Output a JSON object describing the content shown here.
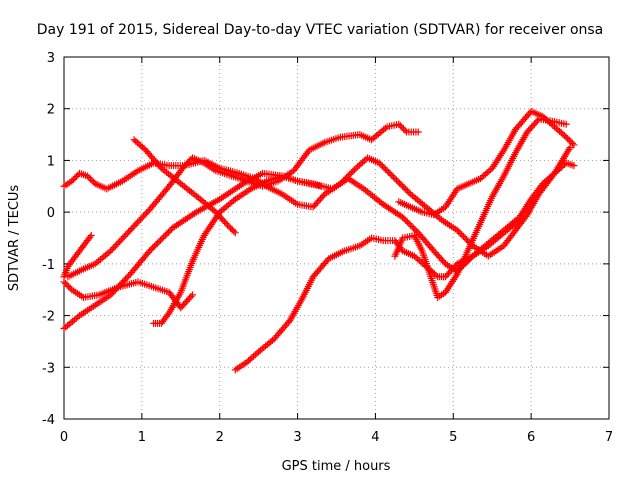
{
  "chart_data": {
    "type": "scatter",
    "title": "Day 191 of 2015, Sidereal Day-to-day VTEC variation (SDTVAR) for receiver onsa",
    "xlabel": "GPS time / hours",
    "ylabel": "SDTVAR / TECUs",
    "xlim": [
      0,
      7
    ],
    "ylim": [
      -4,
      3
    ],
    "x_ticks": [
      "0",
      "1",
      "2",
      "3",
      "4",
      "5",
      "6",
      "7"
    ],
    "y_ticks": [
      "-4",
      "-3",
      "-2",
      "-1",
      "0",
      "1",
      "2",
      "3"
    ],
    "grid": true,
    "marker": "+",
    "color": "#ff0000",
    "series": [
      {
        "points": [
          [
            0.0,
            -2.25
          ],
          [
            0.2,
            -2.0
          ],
          [
            0.4,
            -1.8
          ],
          [
            0.6,
            -1.6
          ],
          [
            0.85,
            -1.2
          ],
          [
            1.1,
            -0.75
          ],
          [
            1.4,
            -0.3
          ],
          [
            1.7,
            0.0
          ],
          [
            2.0,
            0.25
          ],
          [
            2.3,
            0.55
          ],
          [
            2.55,
            0.75
          ],
          [
            2.8,
            0.7
          ],
          [
            3.0,
            0.6
          ],
          [
            3.2,
            0.55
          ],
          [
            3.45,
            0.45
          ],
          [
            3.65,
            0.65
          ],
          [
            3.85,
            0.45
          ],
          [
            4.1,
            0.15
          ],
          [
            4.35,
            -0.1
          ],
          [
            4.55,
            -0.4
          ],
          [
            4.75,
            -0.75
          ],
          [
            4.9,
            -1.0
          ],
          [
            5.05,
            -1.15
          ],
          [
            5.25,
            -0.85
          ],
          [
            5.45,
            -0.65
          ],
          [
            5.65,
            -0.4
          ],
          [
            5.85,
            -0.15
          ]
        ]
      },
      {
        "points": [
          [
            0.0,
            -1.35
          ],
          [
            0.1,
            -1.5
          ],
          [
            0.25,
            -1.65
          ],
          [
            0.45,
            -1.6
          ],
          [
            0.7,
            -1.45
          ],
          [
            0.95,
            -1.35
          ],
          [
            1.15,
            -1.45
          ],
          [
            1.35,
            -1.55
          ],
          [
            1.5,
            -1.85
          ],
          [
            1.65,
            -1.6
          ]
        ]
      },
      {
        "points": [
          [
            0.05,
            -1.25
          ],
          [
            0.25,
            -1.1
          ],
          [
            0.4,
            -1.0
          ],
          [
            0.6,
            -0.75
          ],
          [
            0.85,
            -0.35
          ],
          [
            1.1,
            0.05
          ],
          [
            1.35,
            0.5
          ],
          [
            1.55,
            0.9
          ],
          [
            1.65,
            1.05
          ],
          [
            1.8,
            0.95
          ],
          [
            1.95,
            0.8
          ],
          [
            2.15,
            0.7
          ],
          [
            2.35,
            0.6
          ],
          [
            2.55,
            0.5
          ],
          [
            2.75,
            0.6
          ],
          [
            2.95,
            0.8
          ],
          [
            3.15,
            1.2
          ],
          [
            3.35,
            1.35
          ],
          [
            3.55,
            1.45
          ],
          [
            3.8,
            1.5
          ],
          [
            3.95,
            1.4
          ],
          [
            4.15,
            1.65
          ],
          [
            4.3,
            1.7
          ],
          [
            4.4,
            1.55
          ],
          [
            4.55,
            1.55
          ]
        ]
      },
      {
        "points": [
          [
            0.0,
            0.5
          ],
          [
            0.1,
            0.6
          ],
          [
            0.2,
            0.75
          ],
          [
            0.3,
            0.7
          ],
          [
            0.4,
            0.55
          ],
          [
            0.55,
            0.45
          ],
          [
            0.75,
            0.6
          ],
          [
            0.95,
            0.8
          ],
          [
            1.15,
            0.95
          ],
          [
            1.35,
            0.9
          ],
          [
            1.55,
            0.9
          ],
          [
            1.8,
            1.0
          ],
          [
            2.0,
            0.85
          ],
          [
            2.25,
            0.75
          ],
          [
            2.45,
            0.65
          ],
          [
            2.6,
            0.5
          ],
          [
            2.8,
            0.35
          ],
          [
            3.0,
            0.15
          ],
          [
            3.2,
            0.1
          ],
          [
            3.35,
            0.35
          ],
          [
            3.55,
            0.55
          ],
          [
            3.75,
            0.85
          ],
          [
            3.9,
            1.05
          ],
          [
            4.05,
            0.95
          ],
          [
            4.25,
            0.65
          ],
          [
            4.45,
            0.35
          ],
          [
            4.65,
            0.1
          ],
          [
            4.85,
            -0.15
          ],
          [
            5.05,
            -0.35
          ],
          [
            5.25,
            -0.65
          ],
          [
            5.45,
            -0.85
          ],
          [
            5.65,
            -0.65
          ],
          [
            5.8,
            -0.35
          ],
          [
            5.95,
            -0.05
          ],
          [
            6.1,
            0.35
          ],
          [
            6.3,
            0.75
          ],
          [
            6.5,
            1.25
          ]
        ]
      },
      {
        "points": [
          [
            0.0,
            -1.25
          ],
          [
            0.05,
            -1.05
          ],
          [
            0.15,
            -0.85
          ],
          [
            0.25,
            -0.65
          ],
          [
            0.35,
            -0.45
          ]
        ]
      },
      {
        "points": [
          [
            0.9,
            1.4
          ],
          [
            1.05,
            1.2
          ],
          [
            1.25,
            0.85
          ],
          [
            1.5,
            0.55
          ],
          [
            1.75,
            0.25
          ],
          [
            1.95,
            0.0
          ],
          [
            2.1,
            -0.25
          ],
          [
            2.2,
            -0.4
          ]
        ]
      },
      {
        "points": [
          [
            1.15,
            -2.15
          ],
          [
            1.25,
            -2.15
          ],
          [
            1.35,
            -1.95
          ],
          [
            1.5,
            -1.55
          ],
          [
            1.65,
            -0.95
          ],
          [
            1.8,
            -0.45
          ],
          [
            2.0,
            0.0
          ],
          [
            2.2,
            0.25
          ],
          [
            2.4,
            0.45
          ],
          [
            2.6,
            0.6
          ],
          [
            2.8,
            0.7
          ],
          [
            3.0,
            0.6
          ],
          [
            3.15,
            0.55
          ],
          [
            3.3,
            0.5
          ]
        ]
      },
      {
        "points": [
          [
            2.2,
            -3.05
          ],
          [
            2.35,
            -2.9
          ],
          [
            2.5,
            -2.7
          ],
          [
            2.7,
            -2.45
          ],
          [
            2.9,
            -2.1
          ],
          [
            3.05,
            -1.7
          ],
          [
            3.2,
            -1.25
          ],
          [
            3.4,
            -0.9
          ],
          [
            3.6,
            -0.75
          ],
          [
            3.8,
            -0.65
          ],
          [
            3.95,
            -0.5
          ],
          [
            4.1,
            -0.55
          ],
          [
            4.25,
            -0.55
          ],
          [
            4.35,
            -0.75
          ],
          [
            4.5,
            -0.85
          ],
          [
            4.65,
            -1.05
          ],
          [
            4.8,
            -1.25
          ],
          [
            4.9,
            -1.25
          ],
          [
            5.05,
            -1.0
          ],
          [
            5.25,
            -0.85
          ],
          [
            5.45,
            -0.6
          ],
          [
            5.65,
            -0.35
          ],
          [
            5.85,
            -0.1
          ],
          [
            6.0,
            0.25
          ],
          [
            6.15,
            0.55
          ],
          [
            6.3,
            0.75
          ],
          [
            6.45,
            0.95
          ],
          [
            6.55,
            0.9
          ]
        ]
      },
      {
        "points": [
          [
            4.25,
            -0.85
          ],
          [
            4.35,
            -0.5
          ],
          [
            4.5,
            -0.45
          ],
          [
            4.6,
            -0.75
          ],
          [
            4.7,
            -1.2
          ],
          [
            4.8,
            -1.65
          ],
          [
            4.9,
            -1.55
          ],
          [
            5.05,
            -1.2
          ],
          [
            5.2,
            -0.7
          ],
          [
            5.35,
            -0.2
          ],
          [
            5.5,
            0.3
          ],
          [
            5.65,
            0.7
          ],
          [
            5.8,
            1.15
          ],
          [
            5.95,
            1.55
          ],
          [
            6.1,
            1.8
          ],
          [
            6.3,
            1.75
          ],
          [
            6.45,
            1.7
          ]
        ]
      },
      {
        "points": [
          [
            4.3,
            0.2
          ],
          [
            4.45,
            0.1
          ],
          [
            4.6,
            0.0
          ],
          [
            4.75,
            -0.05
          ],
          [
            4.9,
            0.1
          ],
          [
            5.05,
            0.45
          ],
          [
            5.2,
            0.55
          ],
          [
            5.35,
            0.65
          ],
          [
            5.5,
            0.85
          ],
          [
            5.65,
            1.2
          ],
          [
            5.8,
            1.6
          ],
          [
            6.0,
            1.95
          ],
          [
            6.15,
            1.85
          ],
          [
            6.3,
            1.65
          ],
          [
            6.45,
            1.45
          ],
          [
            6.55,
            1.3
          ]
        ]
      }
    ]
  }
}
